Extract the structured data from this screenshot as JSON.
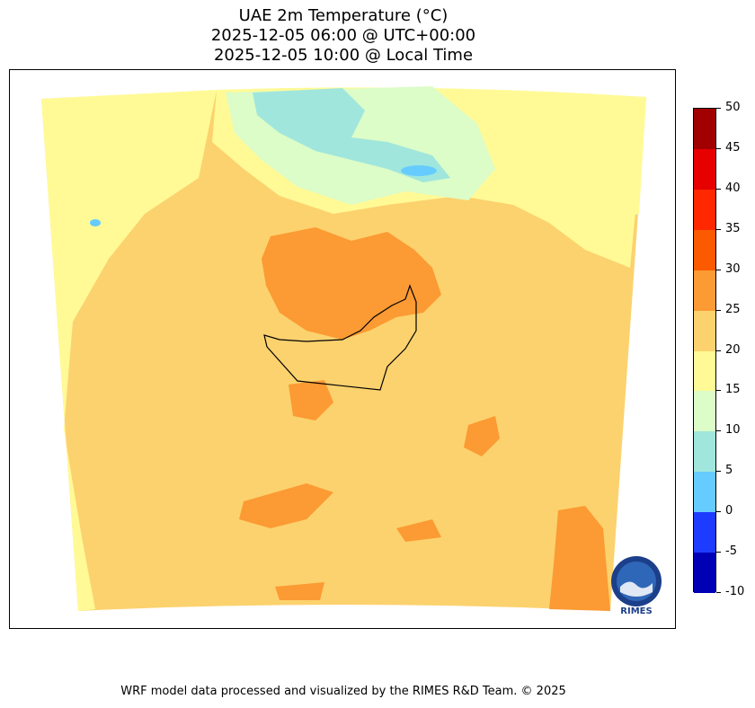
{
  "title": {
    "line1": "UAE 2m Temperature (°C)",
    "line2": "2025-12-05 06:00 @ UTC+00:00",
    "line3": "2025-12-05 10:00 @ Local Time"
  },
  "map": {
    "region": "UAE",
    "variable": "2m Temperature",
    "dominant_band": "20 to 25",
    "colors": {
      "band_minus10": "#0000b4",
      "band_minus5": "#1e3cff",
      "band_0": "#66ccff",
      "band_5": "#a0e6dc",
      "band_10": "#dcfcc8",
      "band_15": "#fffa96",
      "band_20": "#fcd26e",
      "band_25": "#fc9a33",
      "band_30": "#fc5a00",
      "band_35": "#ff2800",
      "band_40": "#e60000",
      "band_45": "#a00000",
      "border": "#000000"
    }
  },
  "colorbar": {
    "tick_labels": [
      "50",
      "45",
      "40",
      "35",
      "30",
      "25",
      "20",
      "15",
      "10",
      "5",
      "0",
      "-5",
      "-10"
    ],
    "segments_top_to_bottom": [
      "#a00000",
      "#e60000",
      "#ff2800",
      "#fc5a00",
      "#fc9a33",
      "#fcd26e",
      "#fffa96",
      "#dcfcc8",
      "#a0e6dc",
      "#66ccff",
      "#1e3cff",
      "#0000b4"
    ]
  },
  "logo": {
    "text": "RIMES"
  },
  "footer": {
    "text": "WRF model data processed and visualized by the RIMES R&D Team. © 2025"
  }
}
